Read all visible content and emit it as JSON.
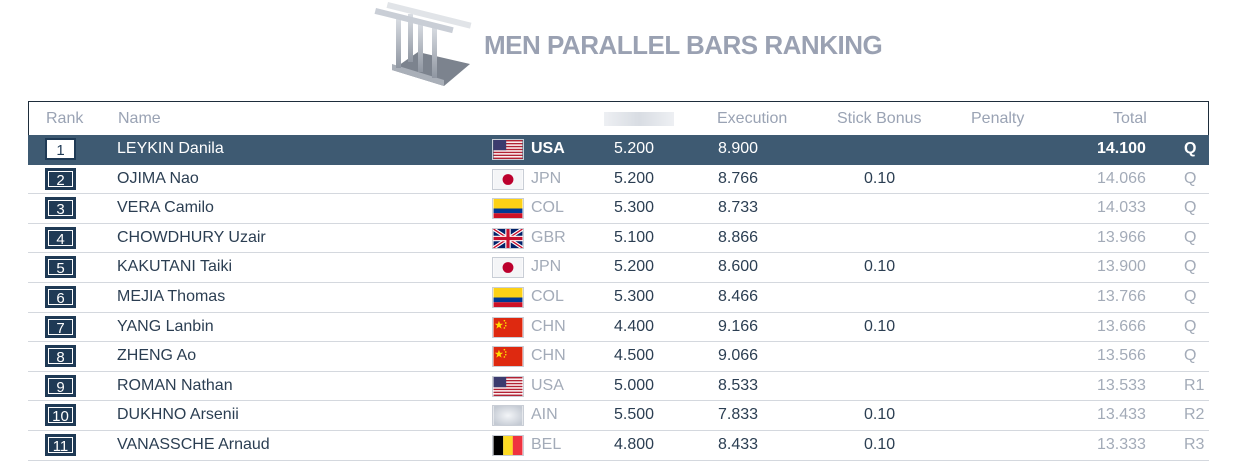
{
  "title": "MEN PARALLEL BARS RANKING",
  "columns": {
    "rank": "Rank",
    "name": "Name",
    "difficulty": "",
    "execution": "Execution",
    "stick_bonus": "Stick Bonus",
    "penalty": "Penalty",
    "total": "Total"
  },
  "rows": [
    {
      "rank": "1",
      "name": "LEYKIN Danila",
      "flag": "usa",
      "code": "USA",
      "d": "5.200",
      "e": "8.900",
      "bonus": "",
      "penalty": "",
      "total": "14.100",
      "q": "Q"
    },
    {
      "rank": "2",
      "name": "OJIMA Nao",
      "flag": "jpn",
      "code": "JPN",
      "d": "5.200",
      "e": "8.766",
      "bonus": "0.10",
      "penalty": "",
      "total": "14.066",
      "q": "Q"
    },
    {
      "rank": "3",
      "name": "VERA Camilo",
      "flag": "col",
      "code": "COL",
      "d": "5.300",
      "e": "8.733",
      "bonus": "",
      "penalty": "",
      "total": "14.033",
      "q": "Q"
    },
    {
      "rank": "4",
      "name": "CHOWDHURY Uzair",
      "flag": "gbr",
      "code": "GBR",
      "d": "5.100",
      "e": "8.866",
      "bonus": "",
      "penalty": "",
      "total": "13.966",
      "q": "Q"
    },
    {
      "rank": "5",
      "name": "KAKUTANI Taiki",
      "flag": "jpn",
      "code": "JPN",
      "d": "5.200",
      "e": "8.600",
      "bonus": "0.10",
      "penalty": "",
      "total": "13.900",
      "q": "Q"
    },
    {
      "rank": "6",
      "name": "MEJIA Thomas",
      "flag": "col",
      "code": "COL",
      "d": "5.300",
      "e": "8.466",
      "bonus": "",
      "penalty": "",
      "total": "13.766",
      "q": "Q"
    },
    {
      "rank": "7",
      "name": "YANG Lanbin",
      "flag": "chn",
      "code": "CHN",
      "d": "4.400",
      "e": "9.166",
      "bonus": "0.10",
      "penalty": "",
      "total": "13.666",
      "q": "Q"
    },
    {
      "rank": "8",
      "name": "ZHENG Ao",
      "flag": "chn",
      "code": "CHN",
      "d": "4.500",
      "e": "9.066",
      "bonus": "",
      "penalty": "",
      "total": "13.566",
      "q": "Q"
    },
    {
      "rank": "9",
      "name": "ROMAN Nathan",
      "flag": "usa",
      "code": "USA",
      "d": "5.000",
      "e": "8.533",
      "bonus": "",
      "penalty": "",
      "total": "13.533",
      "q": "R1"
    },
    {
      "rank": "10",
      "name": "DUKHNO Arsenii",
      "flag": "ain",
      "code": "AIN",
      "d": "5.500",
      "e": "7.833",
      "bonus": "0.10",
      "penalty": "",
      "total": "13.433",
      "q": "R2"
    },
    {
      "rank": "11",
      "name": "VANASSCHE Arnaud",
      "flag": "bel",
      "code": "BEL",
      "d": "4.800",
      "e": "8.433",
      "bonus": "0.10",
      "penalty": "",
      "total": "13.333",
      "q": "R3"
    }
  ],
  "colors": {
    "header_row_bg": "#3e5a72",
    "rank_box_bg": "#1f3a55",
    "title_gray": "#9aa1b2",
    "text_dark": "#2b3e52",
    "text_muted": "#a3abb8"
  },
  "icons": {
    "logo": "parallel-bars-icon",
    "flags": [
      "usa-flag-icon",
      "jpn-flag-icon",
      "col-flag-icon",
      "gbr-flag-icon",
      "chn-flag-icon",
      "ain-flag-icon",
      "bel-flag-icon"
    ]
  }
}
